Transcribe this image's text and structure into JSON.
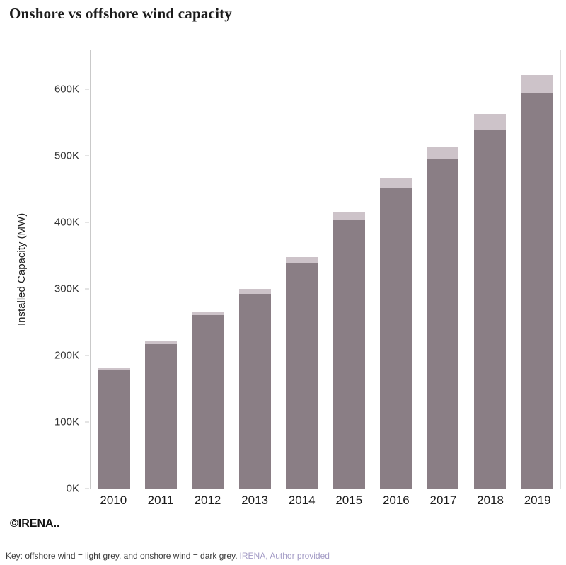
{
  "title": "Onshore vs offshore wind capacity",
  "footer": {
    "copyright": "©IRENA.."
  },
  "caption": {
    "key_text": "Key: offshore wind = light grey, and onshore wind = dark grey.",
    "source_text": "IRENA, Author provided"
  },
  "colors": {
    "onshore_bar": "#8a7e85",
    "offshore_bar": "#cdc3c9",
    "caption_source_text": "#a49cc6",
    "axis_line": "#c9c9c9"
  },
  "chart_data": {
    "type": "bar",
    "stacked": true,
    "title": "Onshore vs offshore wind capacity",
    "categories": [
      "2010",
      "2011",
      "2012",
      "2013",
      "2014",
      "2015",
      "2016",
      "2017",
      "2018",
      "2019"
    ],
    "series": [
      {
        "name": "onshore wind",
        "color": "#8a7e85",
        "values": [
          178,
          217,
          261,
          293,
          340,
          404,
          452,
          495,
          540,
          594
        ]
      },
      {
        "name": "offshore wind",
        "color": "#cdc3c9",
        "values": [
          3,
          4,
          5,
          7,
          8,
          12,
          14,
          19,
          23,
          28
        ]
      }
    ],
    "units": "thousand MW (K)",
    "ylabel": "Installed Capacity (MW)",
    "xlabel": "",
    "yticks": [
      "0K",
      "100K",
      "200K",
      "300K",
      "400K",
      "500K",
      "600K"
    ],
    "ytick_values": [
      0,
      100,
      200,
      300,
      400,
      500,
      600
    ],
    "ylim": [
      0,
      660
    ],
    "grid": false,
    "legend": "none (described in caption key)"
  }
}
